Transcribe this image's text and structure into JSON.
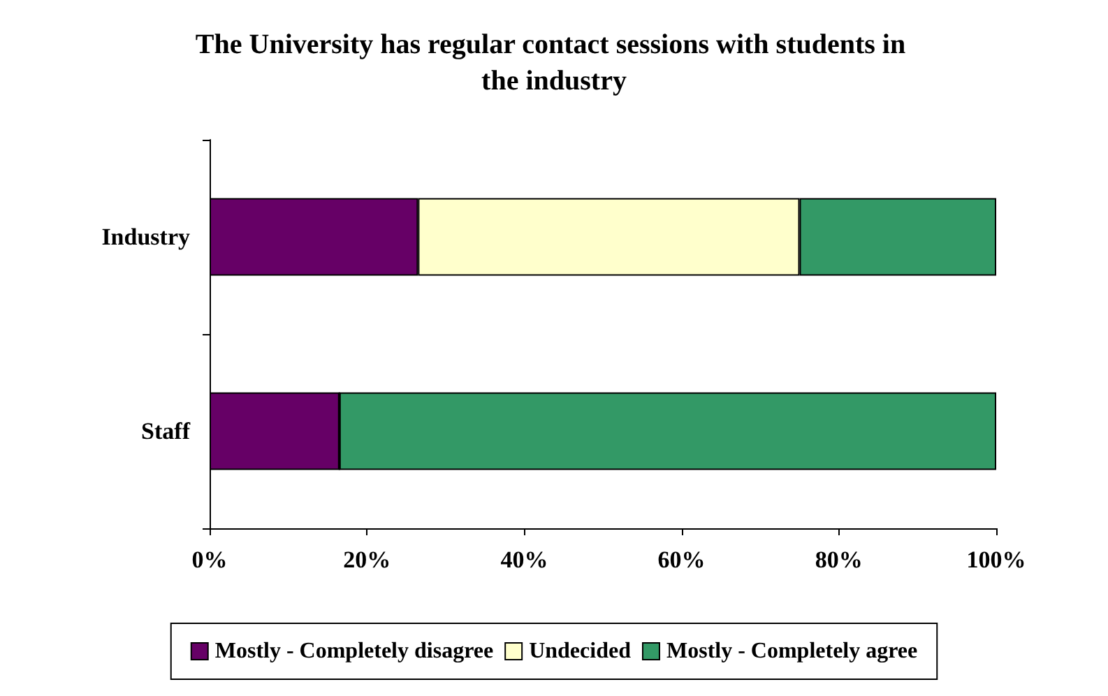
{
  "chart_data": {
    "type": "bar",
    "orientation": "horizontal",
    "stacked": true,
    "title": "The University has regular contact sessions with students in the industry",
    "categories": [
      "Industry",
      "Staff"
    ],
    "series": [
      {
        "name": "Mostly - Completely disagree",
        "color": "#660066",
        "values": [
          26.5,
          16.5
        ]
      },
      {
        "name": "Undecided",
        "color": "#ffffcc",
        "values": [
          48.5,
          0
        ]
      },
      {
        "name": "Mostly - Completely agree",
        "color": "#339966",
        "values": [
          25,
          83.5
        ]
      }
    ],
    "xlim": [
      0,
      100
    ],
    "xticks": [
      {
        "value": 0,
        "label": "0%"
      },
      {
        "value": 20,
        "label": "20%"
      },
      {
        "value": 40,
        "label": "40%"
      },
      {
        "value": 60,
        "label": "60%"
      },
      {
        "value": 80,
        "label": "80%"
      },
      {
        "value": 100,
        "label": "100%"
      }
    ],
    "grid": false,
    "legend": "bottom"
  }
}
